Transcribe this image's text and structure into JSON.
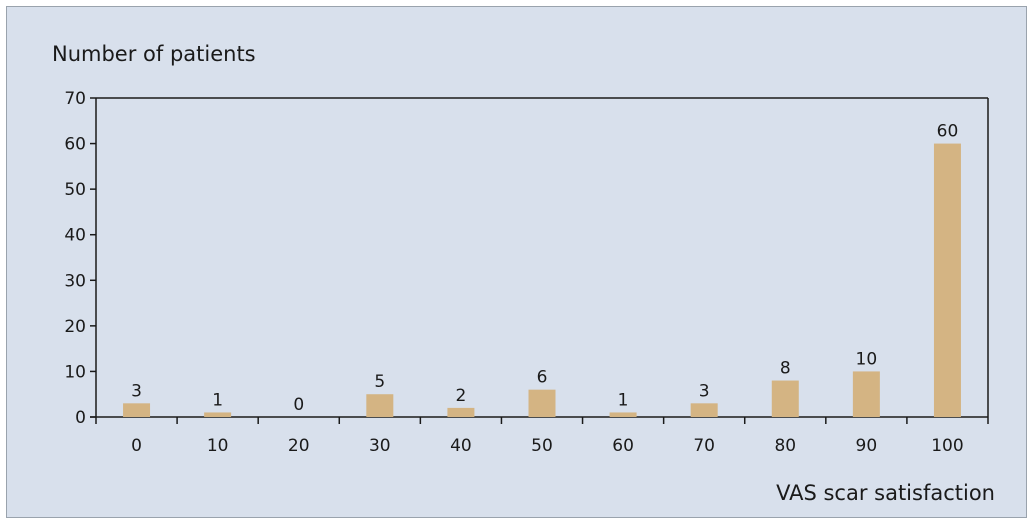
{
  "chart_data": {
    "type": "bar",
    "title": "",
    "ylabel": "Number of patients",
    "xlabel": "VAS scar satisfaction",
    "categories": [
      "0",
      "10",
      "20",
      "30",
      "40",
      "50",
      "60",
      "70",
      "80",
      "90",
      "100"
    ],
    "values": [
      3,
      1,
      0,
      5,
      2,
      6,
      1,
      3,
      8,
      10,
      60
    ],
    "data_labels": [
      "3",
      "1",
      "0",
      "5",
      "2",
      "6",
      "1",
      "3",
      "8",
      "10",
      "60"
    ],
    "ylim": [
      0,
      70
    ],
    "yticks": [
      "0",
      "10",
      "20",
      "30",
      "40",
      "50",
      "60",
      "70"
    ],
    "grid": false,
    "colors": {
      "bar": "#d4b483",
      "background": "#d8e0ec",
      "axis": "#1a1a1a"
    }
  }
}
